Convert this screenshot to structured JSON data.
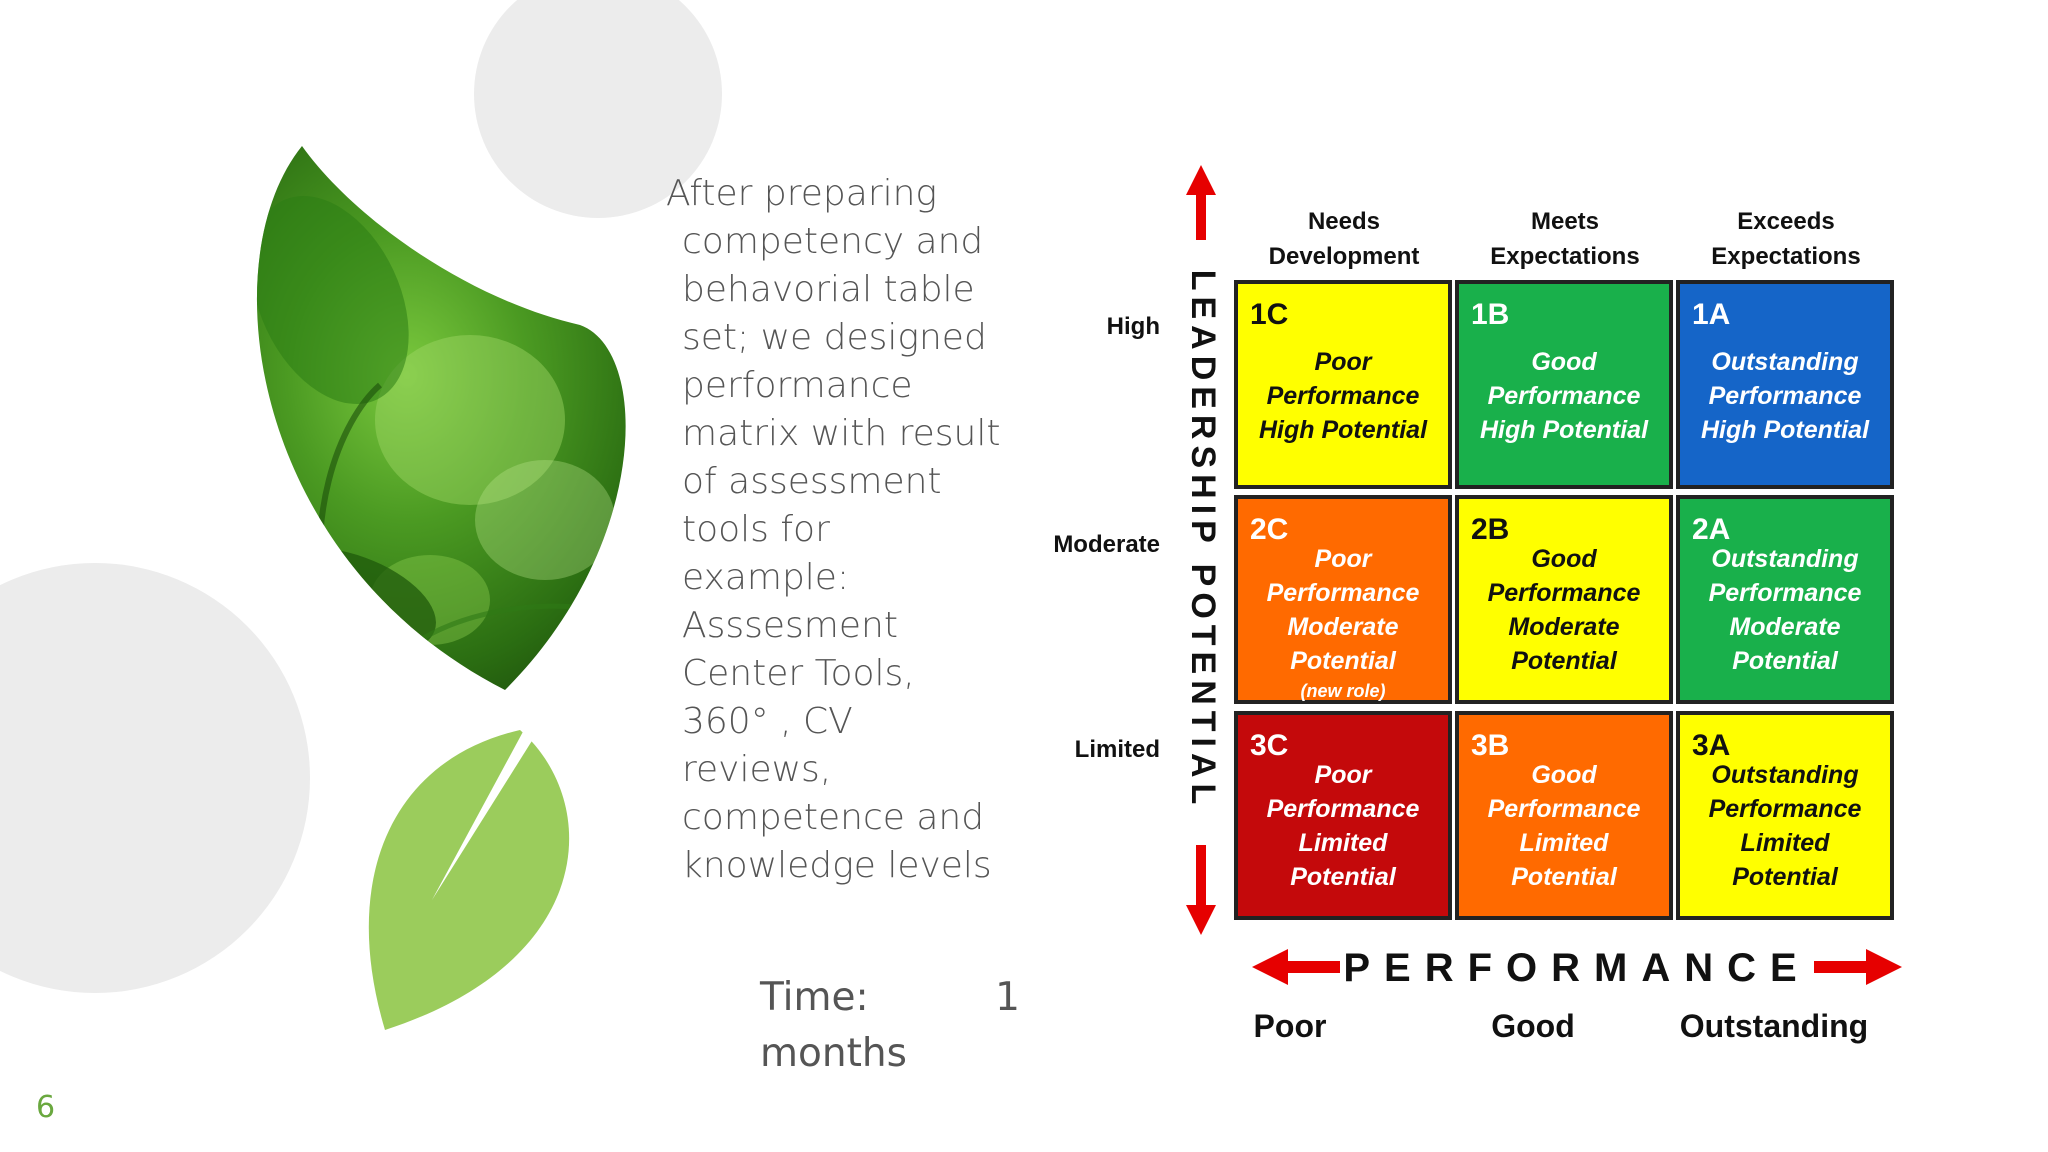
{
  "slide": {
    "body_lines": [
      "After preparing",
      "competency and",
      "behavorial table",
      "set; we designed",
      "performance",
      "matrix with result",
      "of assessment",
      "tools for example:",
      "Asssesment",
      "Center Tools,",
      "360° , CV",
      "reviews,",
      "competence and",
      "knowledge levels"
    ],
    "time_label": "Time:",
    "time_value": "1",
    "time_unit": "months",
    "page_number": "6"
  },
  "matrix": {
    "columns": [
      {
        "line1": "Needs",
        "line2": "Development"
      },
      {
        "line1": "Meets",
        "line2": "Expectations"
      },
      {
        "line1": "Exceeds",
        "line2": "Expectations"
      }
    ],
    "rows": [
      "High",
      "Moderate",
      "Limited"
    ],
    "vertical_axis_label": "LEADERSHIP POTENTIAL",
    "horizontal_axis_label": "PERFORMANCE",
    "bottom_labels": [
      "Poor",
      "Good",
      "Outstanding"
    ],
    "colors": {
      "yellow": "#ffff00",
      "green": "#19b04b",
      "blue": "#1565c8",
      "orange": "#ff6a00",
      "red": "#c4090b",
      "arrow": "#e60000"
    },
    "cells": [
      {
        "id": "1C",
        "color": "yellow",
        "lines": [
          "Poor",
          "Performance",
          "High Potential"
        ],
        "note": ""
      },
      {
        "id": "1B",
        "color": "green",
        "lines": [
          "Good",
          "Performance",
          "High Potential"
        ],
        "note": ""
      },
      {
        "id": "1A",
        "color": "blue",
        "lines": [
          "Outstanding",
          "Performance",
          "High Potential"
        ],
        "note": ""
      },
      {
        "id": "2C",
        "color": "orange",
        "lines": [
          "Poor",
          "Performance",
          "Moderate",
          "Potential"
        ],
        "note": "(new role)"
      },
      {
        "id": "2B",
        "color": "yellow",
        "lines": [
          "Good",
          "Performance",
          "Moderate",
          "Potential"
        ],
        "note": ""
      },
      {
        "id": "2A",
        "color": "green",
        "lines": [
          "Outstanding",
          "Performance",
          "Moderate",
          "Potential"
        ],
        "note": ""
      },
      {
        "id": "3C",
        "color": "red",
        "lines": [
          "Poor",
          "Performance",
          "Limited",
          "Potential"
        ],
        "note": ""
      },
      {
        "id": "3B",
        "color": "orange",
        "lines": [
          "Good",
          "Performance",
          "Limited",
          "Potential"
        ],
        "note": ""
      },
      {
        "id": "3A",
        "color": "yellow",
        "lines": [
          "Outstanding",
          "Performance",
          "Limited",
          "Potential"
        ],
        "note": ""
      }
    ]
  }
}
